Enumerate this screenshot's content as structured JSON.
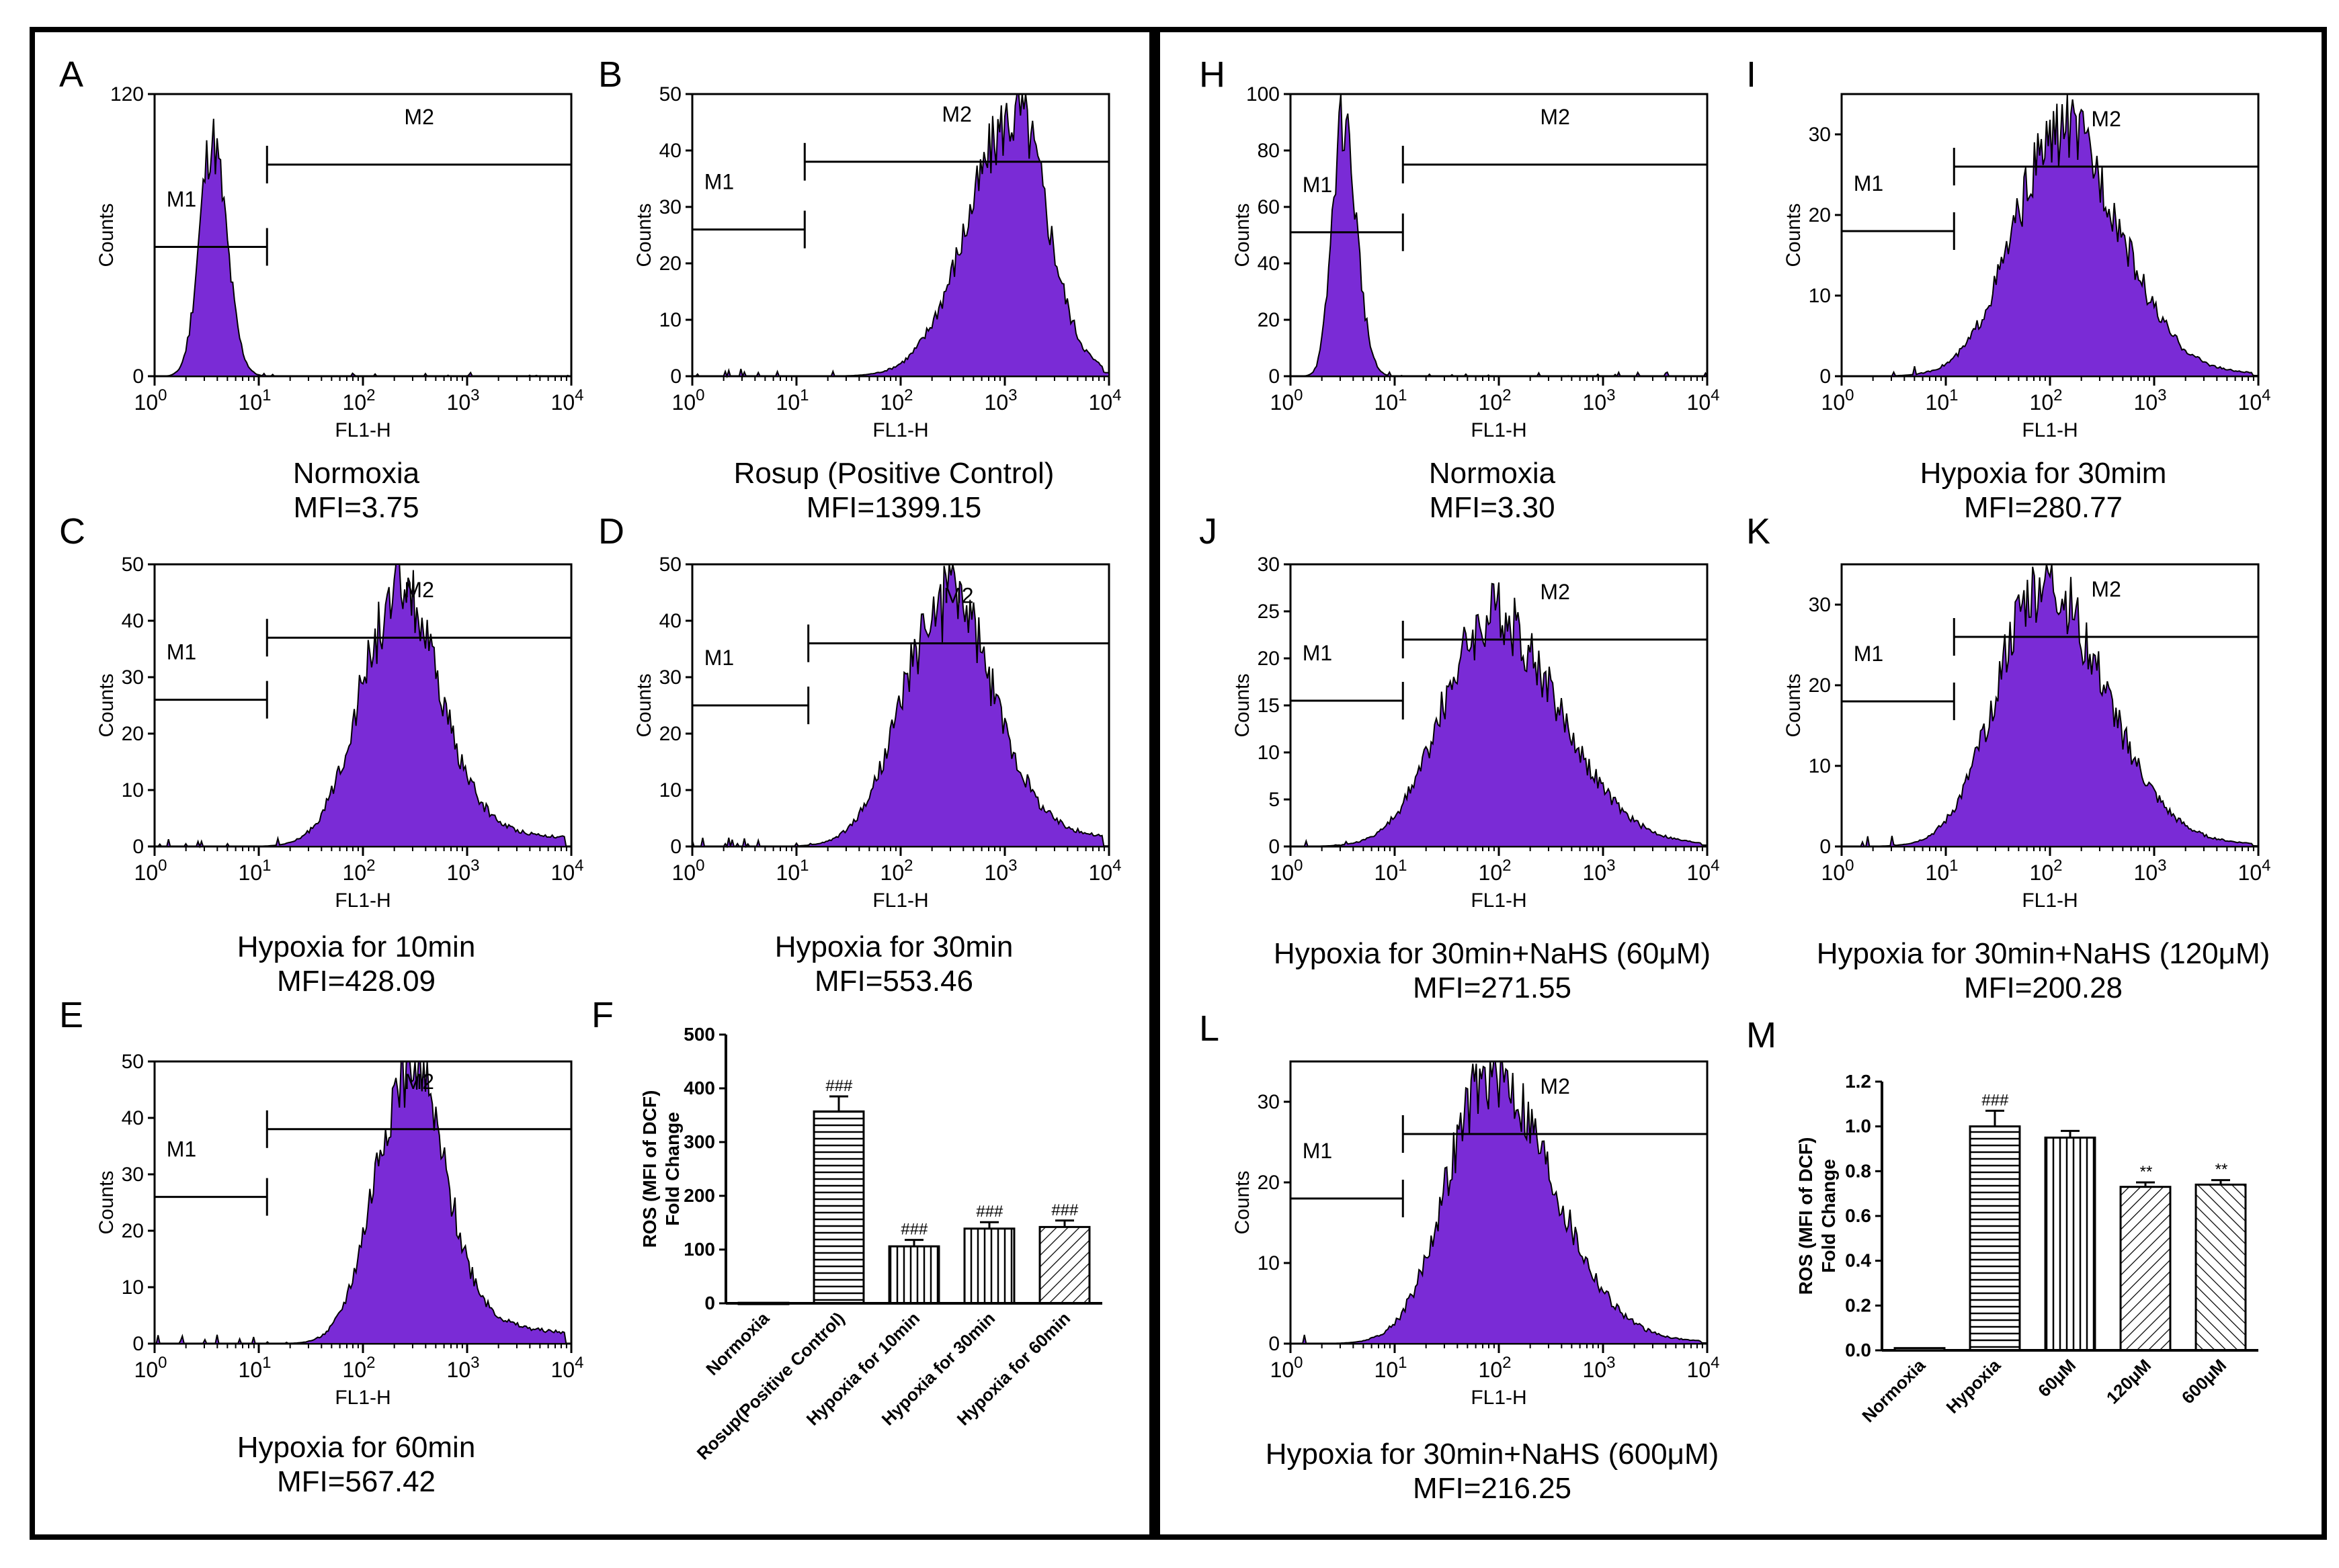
{
  "colors": {
    "histogram_fill": "#7A2BD6",
    "outline": "#000000"
  },
  "chart_data": [
    {
      "id": "A",
      "type": "area",
      "letter": "A",
      "caption": "Normoxia",
      "mfi": "MFI=3.75",
      "xlabel": "FL1-H",
      "ylabel": "Counts",
      "xscale": "log",
      "xlim": [
        1,
        10000
      ],
      "x_ticks": [
        {
          "b": "10",
          "e": "0"
        },
        {
          "b": "10",
          "e": "1"
        },
        {
          "b": "10",
          "e": "2"
        },
        {
          "b": "10",
          "e": "3"
        },
        {
          "b": "10",
          "e": "4"
        }
      ],
      "ylim": [
        0,
        120
      ],
      "y_ticks": [
        "0",
        "120"
      ],
      "gates": [
        {
          "label": "M1",
          "x1": 1,
          "x2": 12,
          "y": 55
        },
        {
          "label": "M2",
          "x1": 12,
          "x2": 10000,
          "y": 90
        }
      ],
      "peak_log": 0.55,
      "peak_count": 100,
      "sigma_left": 0.12,
      "sigma_right": 0.14,
      "tail": 0
    },
    {
      "id": "B",
      "type": "area",
      "letter": "B",
      "caption": "Rosup (Positive Control)",
      "mfi": "MFI=1399.15",
      "xlabel": "FL1-H",
      "ylabel": "Counts",
      "xscale": "log",
      "xlim": [
        1,
        10000
      ],
      "x_ticks": [
        {
          "b": "10",
          "e": "0"
        },
        {
          "b": "10",
          "e": "1"
        },
        {
          "b": "10",
          "e": "2"
        },
        {
          "b": "10",
          "e": "3"
        },
        {
          "b": "10",
          "e": "4"
        }
      ],
      "ylim": [
        0,
        50
      ],
      "y_ticks": [
        "0",
        "10",
        "20",
        "30",
        "40",
        "50"
      ],
      "gates": [
        {
          "label": "M1",
          "x1": 1,
          "x2": 12,
          "y": 26
        },
        {
          "label": "M2",
          "x1": 12,
          "x2": 10000,
          "y": 38
        }
      ],
      "peak_log": 3.1,
      "peak_count": 46,
      "sigma_left": 0.45,
      "sigma_right": 0.3,
      "tail": 0.04
    },
    {
      "id": "C",
      "type": "area",
      "letter": "C",
      "caption": "Hypoxia for 10min",
      "mfi": "MFI=428.09",
      "xlabel": "FL1-H",
      "ylabel": "Counts",
      "xscale": "log",
      "xlim": [
        1,
        10000
      ],
      "x_ticks": [
        {
          "b": "10",
          "e": "0"
        },
        {
          "b": "10",
          "e": "1"
        },
        {
          "b": "10",
          "e": "2"
        },
        {
          "b": "10",
          "e": "3"
        },
        {
          "b": "10",
          "e": "4"
        }
      ],
      "ylim": [
        0,
        50
      ],
      "y_ticks": [
        "0",
        "10",
        "20",
        "30",
        "40",
        "50"
      ],
      "gates": [
        {
          "label": "M1",
          "x1": 1,
          "x2": 12,
          "y": 26
        },
        {
          "label": "M2",
          "x1": 12,
          "x2": 10000,
          "y": 37
        }
      ],
      "peak_log": 2.3,
      "peak_count": 42,
      "sigma_left": 0.35,
      "sigma_right": 0.4,
      "tail": 0.15
    },
    {
      "id": "D",
      "type": "area",
      "letter": "D",
      "caption": "Hypoxia for 30min",
      "mfi": "MFI=553.46",
      "xlabel": "FL1-H",
      "ylabel": "Counts",
      "xscale": "log",
      "xlim": [
        1,
        10000
      ],
      "x_ticks": [
        {
          "b": "10",
          "e": "0"
        },
        {
          "b": "10",
          "e": "1"
        },
        {
          "b": "10",
          "e": "2"
        },
        {
          "b": "10",
          "e": "3"
        },
        {
          "b": "10",
          "e": "4"
        }
      ],
      "ylim": [
        0,
        50
      ],
      "y_ticks": [
        "0",
        "10",
        "20",
        "30",
        "40",
        "50"
      ],
      "gates": [
        {
          "label": "M1",
          "x1": 1,
          "x2": 13,
          "y": 25
        },
        {
          "label": "M2",
          "x1": 13,
          "x2": 10000,
          "y": 36
        }
      ],
      "peak_log": 2.4,
      "peak_count": 42,
      "sigma_left": 0.4,
      "sigma_right": 0.45,
      "tail": 0.15
    },
    {
      "id": "E",
      "type": "area",
      "letter": "E",
      "caption": "Hypoxia for 60min",
      "mfi": "MFI=567.42",
      "xlabel": "FL1-H",
      "ylabel": "Counts",
      "xscale": "log",
      "xlim": [
        1,
        10000
      ],
      "x_ticks": [
        {
          "b": "10",
          "e": "0"
        },
        {
          "b": "10",
          "e": "1"
        },
        {
          "b": "10",
          "e": "2"
        },
        {
          "b": "10",
          "e": "3"
        },
        {
          "b": "10",
          "e": "4"
        }
      ],
      "ylim": [
        0,
        50
      ],
      "y_ticks": [
        "0",
        "10",
        "20",
        "30",
        "40",
        "50"
      ],
      "gates": [
        {
          "label": "M1",
          "x1": 1,
          "x2": 12,
          "y": 26
        },
        {
          "label": "M2",
          "x1": 12,
          "x2": 10000,
          "y": 38
        }
      ],
      "peak_log": 2.4,
      "peak_count": 47,
      "sigma_left": 0.3,
      "sigma_right": 0.35,
      "tail": 0.15
    },
    {
      "id": "F",
      "type": "bar",
      "letter": "F",
      "ylabel_lines": [
        "ROS (MFI of DCF)",
        "Fold Change"
      ],
      "categories": [
        "Normoxia",
        "Rosup(Positive Control)",
        "Hypoxia for 10min",
        "Hypoxia for 30min",
        "Hypoxia for 60min"
      ],
      "values": [
        1,
        357,
        106,
        139,
        142
      ],
      "errors": [
        0,
        28,
        12,
        12,
        12
      ],
      "sig": [
        "",
        "###",
        "###",
        "###",
        "###"
      ],
      "ylim": [
        0,
        500
      ],
      "y_ticks": [
        "0",
        "100",
        "200",
        "300",
        "400",
        "500"
      ],
      "patterns": [
        "none",
        "hstripe",
        "vstripe",
        "vstripe",
        "dstripe"
      ]
    },
    {
      "id": "H",
      "type": "area",
      "letter": "H",
      "caption": "Normoxia",
      "mfi": "MFI=3.30",
      "xlabel": "FL1-H",
      "ylabel": "Counts",
      "xscale": "log",
      "xlim": [
        1,
        10000
      ],
      "x_ticks": [
        {
          "b": "10",
          "e": "0"
        },
        {
          "b": "10",
          "e": "1"
        },
        {
          "b": "10",
          "e": "2"
        },
        {
          "b": "10",
          "e": "3"
        },
        {
          "b": "10",
          "e": "4"
        }
      ],
      "ylim": [
        0,
        100
      ],
      "y_ticks": [
        "0",
        "20",
        "40",
        "60",
        "80",
        "100"
      ],
      "gates": [
        {
          "label": "M1",
          "x1": 1,
          "x2": 12,
          "y": 51
        },
        {
          "label": "M2",
          "x1": 12,
          "x2": 10000,
          "y": 75
        }
      ],
      "peak_log": 0.5,
      "peak_count": 92,
      "sigma_left": 0.1,
      "sigma_right": 0.13,
      "tail": 0
    },
    {
      "id": "I",
      "type": "area",
      "letter": "I",
      "caption": "Hypoxia for 30mim",
      "mfi": "MFI=280.77",
      "xlabel": "FL1-H",
      "ylabel": "Counts",
      "xscale": "log",
      "xlim": [
        1,
        10000
      ],
      "x_ticks": [
        {
          "b": "10",
          "e": "0"
        },
        {
          "b": "10",
          "e": "1"
        },
        {
          "b": "10",
          "e": "2"
        },
        {
          "b": "10",
          "e": "3"
        },
        {
          "b": "10",
          "e": "4"
        }
      ],
      "ylim": [
        0,
        35
      ],
      "y_ticks": [
        "0",
        "10",
        "20",
        "30"
      ],
      "gates": [
        {
          "label": "M1",
          "x1": 1,
          "x2": 12,
          "y": 18
        },
        {
          "label": "M2",
          "x1": 12,
          "x2": 10000,
          "y": 26
        }
      ],
      "peak_log": 2.1,
      "peak_count": 30,
      "sigma_left": 0.45,
      "sigma_right": 0.55,
      "tail": 0.05
    },
    {
      "id": "J",
      "type": "area",
      "letter": "J",
      "caption": "Hypoxia for 30min+NaHS (60μM)",
      "mfi": "MFI=271.55",
      "xlabel": "FL1-H",
      "ylabel": "Counts",
      "xscale": "log",
      "xlim": [
        1,
        10000
      ],
      "x_ticks": [
        {
          "b": "10",
          "e": "0"
        },
        {
          "b": "10",
          "e": "1"
        },
        {
          "b": "10",
          "e": "2"
        },
        {
          "b": "10",
          "e": "3"
        },
        {
          "b": "10",
          "e": "4"
        }
      ],
      "ylim": [
        0,
        30
      ],
      "y_ticks": [
        "0",
        "5",
        "10",
        "15",
        "20",
        "25",
        "30"
      ],
      "gates": [
        {
          "label": "M1",
          "x1": 1,
          "x2": 12,
          "y": 15.5
        },
        {
          "label": "M2",
          "x1": 12,
          "x2": 10000,
          "y": 22
        }
      ],
      "peak_log": 1.9,
      "peak_count": 24,
      "sigma_left": 0.45,
      "sigma_right": 0.65,
      "tail": 0.05
    },
    {
      "id": "K",
      "type": "area",
      "letter": "K",
      "caption": "Hypoxia for 30min+NaHS (120μM)",
      "mfi": "MFI=200.28",
      "xlabel": "FL1-H",
      "ylabel": "Counts",
      "xscale": "log",
      "xlim": [
        1,
        10000
      ],
      "x_ticks": [
        {
          "b": "10",
          "e": "0"
        },
        {
          "b": "10",
          "e": "1"
        },
        {
          "b": "10",
          "e": "2"
        },
        {
          "b": "10",
          "e": "3"
        },
        {
          "b": "10",
          "e": "4"
        }
      ],
      "ylim": [
        0,
        35
      ],
      "y_ticks": [
        "0",
        "10",
        "20",
        "30"
      ],
      "gates": [
        {
          "label": "M1",
          "x1": 1,
          "x2": 12,
          "y": 18
        },
        {
          "label": "M2",
          "x1": 12,
          "x2": 10000,
          "y": 26
        }
      ],
      "peak_log": 1.9,
      "peak_count": 32,
      "sigma_left": 0.42,
      "sigma_right": 0.6,
      "tail": 0.05
    },
    {
      "id": "L",
      "type": "area",
      "letter": "L",
      "caption": "Hypoxia for 30min+NaHS (600μM)",
      "mfi": "MFI=216.25",
      "xlabel": "FL1-H",
      "ylabel": "Counts",
      "xscale": "log",
      "xlim": [
        1,
        10000
      ],
      "x_ticks": [
        {
          "b": "10",
          "e": "0"
        },
        {
          "b": "10",
          "e": "1"
        },
        {
          "b": "10",
          "e": "2"
        },
        {
          "b": "10",
          "e": "3"
        },
        {
          "b": "10",
          "e": "4"
        }
      ],
      "ylim": [
        0,
        35
      ],
      "y_ticks": [
        "0",
        "10",
        "20",
        "30"
      ],
      "gates": [
        {
          "label": "M1",
          "x1": 1,
          "x2": 12,
          "y": 18
        },
        {
          "label": "M2",
          "x1": 12,
          "x2": 10000,
          "y": 26
        }
      ],
      "peak_log": 1.9,
      "peak_count": 33,
      "sigma_left": 0.4,
      "sigma_right": 0.6,
      "tail": 0.04
    },
    {
      "id": "M",
      "type": "bar",
      "letter": "M",
      "ylabel_lines": [
        "ROS (MFI of DCF)",
        "Fold Change"
      ],
      "categories": [
        "Normoxia",
        "Hypoxia",
        "60μM",
        "120μM",
        "600μM"
      ],
      "values": [
        0.01,
        1.0,
        0.95,
        0.73,
        0.74
      ],
      "errors": [
        0,
        0.07,
        0.03,
        0.02,
        0.02
      ],
      "sig": [
        "",
        "###",
        "",
        "**",
        "**"
      ],
      "ylim": [
        0,
        1.2
      ],
      "y_ticks": [
        "0.0",
        "0.2",
        "0.4",
        "0.6",
        "0.8",
        "1.0",
        "1.2"
      ],
      "patterns": [
        "none",
        "hstripe",
        "vstripe",
        "dstripe",
        "dstripe2"
      ]
    }
  ]
}
